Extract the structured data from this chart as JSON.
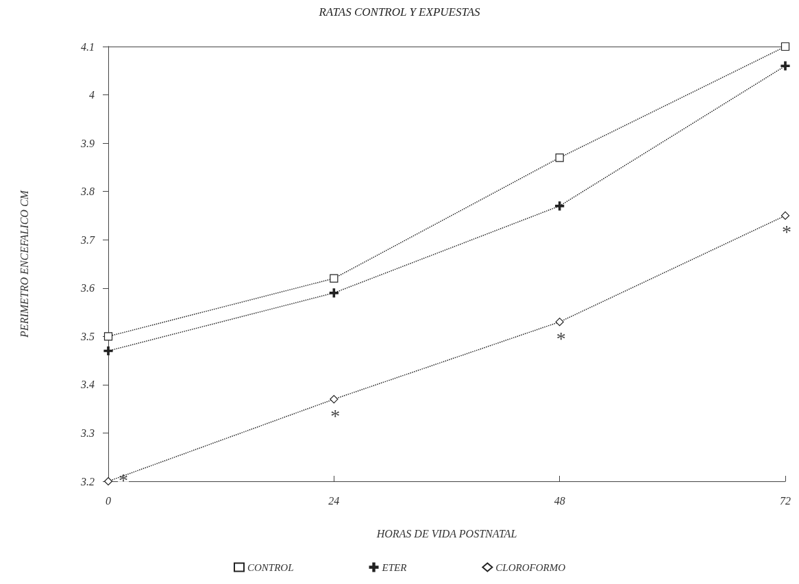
{
  "chart_data": {
    "type": "line",
    "title": "RATAS CONTROL Y EXPUESTAS",
    "xlabel": "HORAS DE VIDA POSTNATAL",
    "ylabel": "PERIMETRO ENCEFALICO CM",
    "x": [
      0,
      24,
      48,
      72
    ],
    "series": [
      {
        "name": "CONTROL",
        "color": "#222222",
        "marker": "square",
        "values": [
          3.5,
          3.62,
          3.87,
          4.1
        ]
      },
      {
        "name": "ETER",
        "color": "#222222",
        "marker": "cross",
        "values": [
          3.47,
          3.59,
          3.77,
          4.06
        ]
      },
      {
        "name": "CLOROFORMO",
        "color": "#222222",
        "marker": "diamond",
        "values": [
          3.2,
          3.37,
          3.53,
          3.75
        ]
      }
    ],
    "annotations": [
      {
        "text": "*",
        "x": 0,
        "y": 3.2
      },
      {
        "text": "*",
        "x": 24,
        "y": 3.37
      },
      {
        "text": "*",
        "x": 48,
        "y": 3.53
      },
      {
        "text": "*",
        "x": 72,
        "y": 3.75
      }
    ],
    "xlim": [
      0,
      72
    ],
    "xticks": [
      0,
      24,
      48,
      72
    ],
    "ylim": [
      3.2,
      4.1
    ],
    "yticks": [
      3.2,
      3.3,
      3.4,
      3.5,
      3.6,
      3.7,
      3.8,
      3.9,
      4,
      4.1
    ],
    "line_style": "dotted",
    "grid": false,
    "legend": "bottom"
  }
}
